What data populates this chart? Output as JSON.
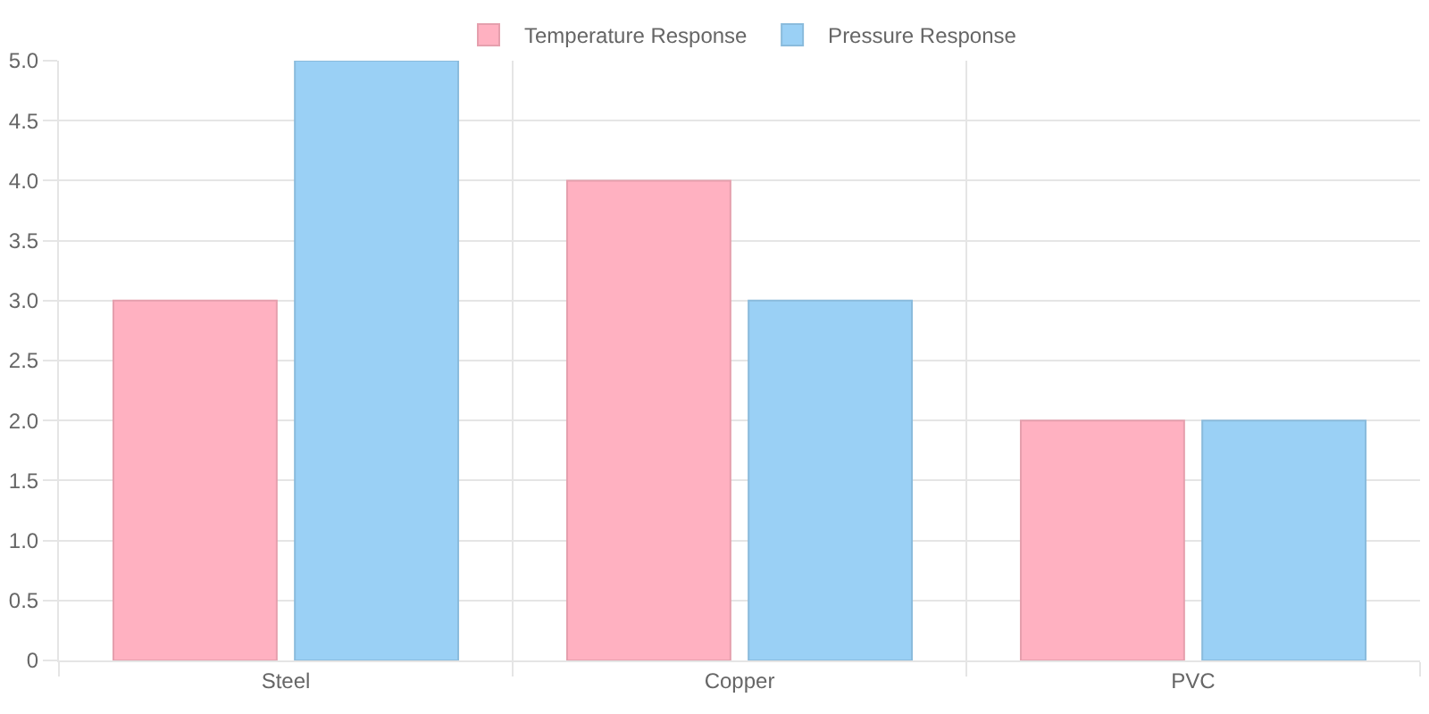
{
  "chart_data": {
    "type": "bar",
    "categories": [
      "Steel",
      "Copper",
      "PVC"
    ],
    "series": [
      {
        "name": "Temperature Response",
        "color": "#ffb1c1",
        "values": [
          3,
          4,
          2
        ]
      },
      {
        "name": "Pressure Response",
        "color": "#9ad0f5",
        "values": [
          5,
          3,
          2
        ]
      }
    ],
    "ylim": [
      0,
      5
    ],
    "yticks": [
      0,
      0.5,
      {
        "value": 1,
        "label": "1.0"
      },
      1.5,
      {
        "value": 2,
        "label": "2.0"
      },
      2.5,
      {
        "value": 3,
        "label": "3.0"
      },
      3.5,
      {
        "value": 4,
        "label": "4.0"
      },
      4.5,
      {
        "value": 5,
        "label": "5.0"
      }
    ],
    "grid": true,
    "legend": "top"
  }
}
